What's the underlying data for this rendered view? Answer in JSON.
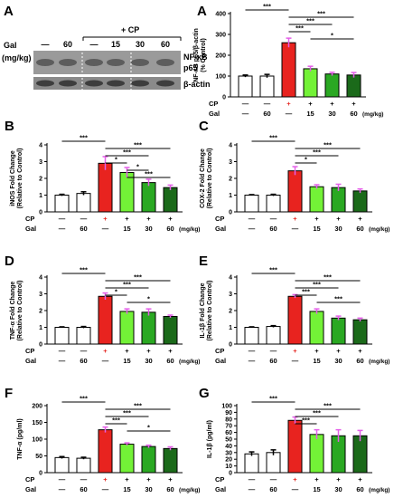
{
  "panel_a_blot": {
    "letter": "A",
    "gal_label": "Gal",
    "unit_label": "(mg/kg)",
    "cp_label": "+ CP",
    "doses": [
      "—",
      "60",
      "—",
      "15",
      "30",
      "60"
    ],
    "band_labels": [
      "NF-κB",
      "p65",
      "β-actin"
    ]
  },
  "colors": {
    "white": "#ffffff",
    "red": "#e8231f",
    "light_green": "#73f237",
    "green": "#2aa822",
    "dark_green": "#1b6a1a",
    "error_bar": "#e45fe8",
    "axis": "#000000",
    "star_positive": "#e52520"
  },
  "chart_data": [
    {
      "id": "A",
      "letter": "A",
      "type": "bar",
      "ylabel_lines": [
        "NF-κB p65/β-actin",
        "(% Control)"
      ],
      "ylim": [
        0,
        400
      ],
      "yticks": [
        0,
        100,
        200,
        300,
        400
      ],
      "categories": [
        "—/—",
        "—/60",
        "+/—",
        "+/15",
        "+/30",
        "+/60"
      ],
      "values": [
        100,
        100,
        260,
        135,
        110,
        105
      ],
      "errors": [
        5,
        8,
        22,
        12,
        8,
        12
      ],
      "cp_row": [
        "—",
        "—",
        "+",
        "+",
        "+",
        "+"
      ],
      "gal_row": [
        "—",
        "60",
        "—",
        "15",
        "30",
        "60"
      ],
      "unit": "(mg/kg)",
      "sig": [
        {
          "from": 0,
          "to": 2,
          "label": "***"
        },
        {
          "from": 2,
          "to": 5,
          "label": "***"
        },
        {
          "from": 2,
          "to": 4,
          "label": "***"
        },
        {
          "from": 2,
          "to": 3,
          "label": "***"
        },
        {
          "from": 3,
          "to": 5,
          "label": "*"
        }
      ]
    },
    {
      "id": "B",
      "letter": "B",
      "type": "bar",
      "ylabel_lines": [
        "iNOS Fold Change",
        "(Relative to Control)"
      ],
      "ylim": [
        0,
        4
      ],
      "yticks": [
        0,
        1,
        2,
        3,
        4
      ],
      "categories": [
        "—/—",
        "—/60",
        "+/—",
        "+/15",
        "+/30",
        "+/60"
      ],
      "values": [
        1.0,
        1.1,
        2.9,
        2.35,
        1.75,
        1.45
      ],
      "errors": [
        0.05,
        0.1,
        0.4,
        0.3,
        0.2,
        0.15
      ],
      "cp_row": [
        "—",
        "—",
        "+",
        "+",
        "+",
        "+"
      ],
      "gal_row": [
        "—",
        "60",
        "—",
        "15",
        "30",
        "60"
      ],
      "unit": "(mg/kg)",
      "sig": [
        {
          "from": 0,
          "to": 2,
          "label": "***"
        },
        {
          "from": 2,
          "to": 5,
          "label": "***"
        },
        {
          "from": 2,
          "to": 4,
          "label": "***"
        },
        {
          "from": 2,
          "to": 3,
          "label": "*"
        },
        {
          "from": 3,
          "to": 4,
          "label": "*"
        },
        {
          "from": 3,
          "to": 5,
          "label": "***"
        }
      ]
    },
    {
      "id": "C",
      "letter": "C",
      "type": "bar",
      "ylabel_lines": [
        "COX-2 Fold Change",
        "(Relative to Control)"
      ],
      "ylim": [
        0,
        4
      ],
      "yticks": [
        0,
        1,
        2,
        3,
        4
      ],
      "categories": [
        "—/—",
        "—/60",
        "+/—",
        "+/15",
        "+/30",
        "+/60"
      ],
      "values": [
        1.0,
        1.0,
        2.45,
        1.5,
        1.45,
        1.25
      ],
      "errors": [
        0.03,
        0.05,
        0.25,
        0.12,
        0.2,
        0.12
      ],
      "cp_row": [
        "—",
        "—",
        "+",
        "+",
        "+",
        "+"
      ],
      "gal_row": [
        "—",
        "60",
        "—",
        "15",
        "30",
        "60"
      ],
      "unit": "(mg/kg)",
      "sig": [
        {
          "from": 0,
          "to": 2,
          "label": "***"
        },
        {
          "from": 2,
          "to": 5,
          "label": "***"
        },
        {
          "from": 2,
          "to": 4,
          "label": "***"
        },
        {
          "from": 2,
          "to": 3,
          "label": "*"
        }
      ]
    },
    {
      "id": "D",
      "letter": "D",
      "type": "bar",
      "ylabel_lines": [
        "TNF-α Fold Change",
        "(Relative to Control)"
      ],
      "ylim": [
        0,
        4
      ],
      "yticks": [
        0,
        1,
        2,
        3,
        4
      ],
      "categories": [
        "—/—",
        "—/60",
        "+/—",
        "+/15",
        "+/30",
        "+/60"
      ],
      "values": [
        1.0,
        1.0,
        2.85,
        1.95,
        1.9,
        1.65
      ],
      "errors": [
        0.03,
        0.05,
        0.2,
        0.15,
        0.2,
        0.08
      ],
      "cp_row": [
        "—",
        "—",
        "+",
        "+",
        "+",
        "+"
      ],
      "gal_row": [
        "—",
        "60",
        "—",
        "15",
        "30",
        "60"
      ],
      "unit": "(mg/kg)",
      "sig": [
        {
          "from": 0,
          "to": 2,
          "label": "***"
        },
        {
          "from": 2,
          "to": 5,
          "label": "***"
        },
        {
          "from": 2,
          "to": 4,
          "label": "***"
        },
        {
          "from": 2,
          "to": 3,
          "label": "*"
        },
        {
          "from": 3,
          "to": 5,
          "label": "*"
        }
      ]
    },
    {
      "id": "E",
      "letter": "E",
      "type": "bar",
      "ylabel_lines": [
        "IL-1β Fold Change",
        "(Relative to Control)"
      ],
      "ylim": [
        0,
        4
      ],
      "yticks": [
        0,
        1,
        2,
        3,
        4
      ],
      "categories": [
        "—/—",
        "—/60",
        "+/—",
        "+/15",
        "+/30",
        "+/60"
      ],
      "values": [
        1.0,
        1.05,
        2.85,
        1.95,
        1.55,
        1.45
      ],
      "errors": [
        0.03,
        0.05,
        0.1,
        0.15,
        0.12,
        0.1
      ],
      "cp_row": [
        "—",
        "—",
        "+",
        "+",
        "+",
        "+"
      ],
      "gal_row": [
        "—",
        "60",
        "—",
        "15",
        "30",
        "60"
      ],
      "unit": "(mg/kg)",
      "sig": [
        {
          "from": 0,
          "to": 2,
          "label": "***"
        },
        {
          "from": 2,
          "to": 5,
          "label": "***"
        },
        {
          "from": 2,
          "to": 4,
          "label": "***"
        },
        {
          "from": 2,
          "to": 3,
          "label": "***"
        },
        {
          "from": 3,
          "to": 5,
          "label": "***"
        }
      ]
    },
    {
      "id": "F",
      "letter": "F",
      "type": "bar",
      "ylabel_lines": [
        "TNF-α (pg/ml)"
      ],
      "ylim": [
        0,
        200
      ],
      "yticks": [
        0,
        50,
        100,
        150,
        200
      ],
      "categories": [
        "—/—",
        "—/60",
        "+/—",
        "+/15",
        "+/30",
        "+/60"
      ],
      "values": [
        45,
        43,
        128,
        85,
        78,
        72
      ],
      "errors": [
        3,
        3,
        8,
        4,
        4,
        5
      ],
      "cp_row": [
        "—",
        "—",
        "+",
        "+",
        "+",
        "+"
      ],
      "gal_row": [
        "—",
        "60",
        "—",
        "15",
        "30",
        "60"
      ],
      "unit": "(mg/kg)",
      "sig": [
        {
          "from": 0,
          "to": 2,
          "label": "***"
        },
        {
          "from": 2,
          "to": 5,
          "label": "***"
        },
        {
          "from": 2,
          "to": 4,
          "label": "***"
        },
        {
          "from": 2,
          "to": 3,
          "label": "***"
        },
        {
          "from": 3,
          "to": 5,
          "label": "*"
        }
      ]
    },
    {
      "id": "G",
      "letter": "G",
      "type": "bar",
      "ylabel_lines": [
        "IL-1β (pg/ml)"
      ],
      "ylim": [
        0,
        100
      ],
      "yticks": [
        0,
        10,
        20,
        30,
        40,
        50,
        60,
        70,
        80,
        90,
        100
      ],
      "categories": [
        "—/—",
        "—/60",
        "+/—",
        "+/15",
        "+/30",
        "+/60"
      ],
      "values": [
        28,
        30,
        78,
        57,
        55,
        55
      ],
      "errors": [
        3,
        4,
        5,
        7,
        9,
        8
      ],
      "cp_row": [
        "—",
        "—",
        "+",
        "+",
        "+",
        "+"
      ],
      "gal_row": [
        "—",
        "60",
        "—",
        "15",
        "30",
        "60"
      ],
      "unit": "(mg/kg)",
      "sig": [
        {
          "from": 0,
          "to": 2,
          "label": "***"
        },
        {
          "from": 2,
          "to": 5,
          "label": "***"
        },
        {
          "from": 2,
          "to": 4,
          "label": "***"
        },
        {
          "from": 2,
          "to": 3,
          "label": "***"
        }
      ]
    }
  ]
}
